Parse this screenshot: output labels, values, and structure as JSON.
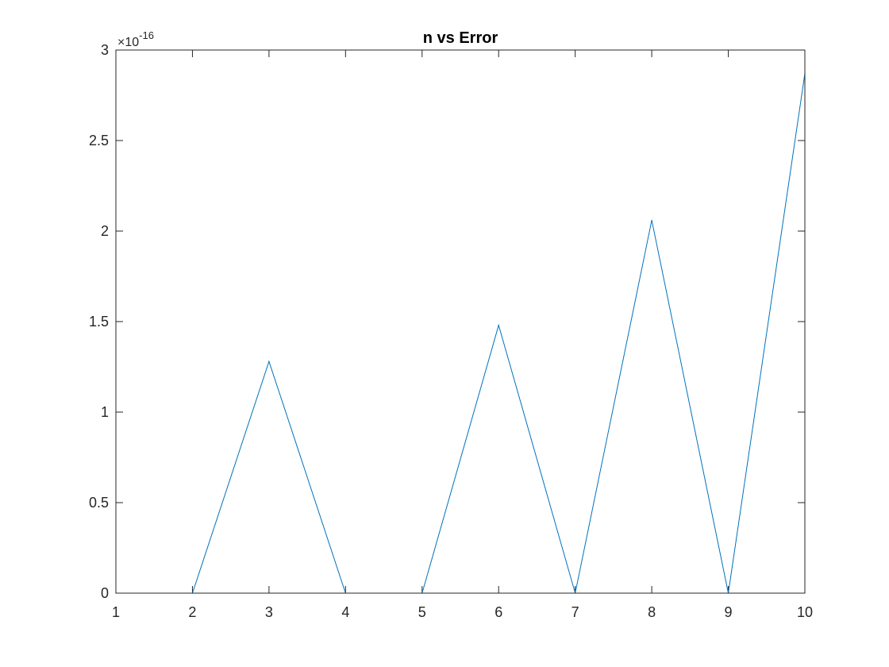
{
  "chart_data": {
    "type": "line",
    "title": "n vs Error",
    "xlabel": "",
    "ylabel": "",
    "xlim": [
      1,
      10
    ],
    "ylim": [
      0,
      3
    ],
    "y_multiplier": {
      "prefix": "×10",
      "exponent": "-16"
    },
    "x_ticks": [
      1,
      2,
      3,
      4,
      5,
      6,
      7,
      8,
      9,
      10
    ],
    "x_tick_labels": [
      "1",
      "2",
      "3",
      "4",
      "5",
      "6",
      "7",
      "8",
      "9",
      "10"
    ],
    "y_ticks": [
      0,
      0.5,
      1,
      1.5,
      2,
      2.5,
      3
    ],
    "y_tick_labels": [
      "0",
      "0.5",
      "1",
      "1.5",
      "2",
      "2.5",
      "3"
    ],
    "grid": false,
    "series": [
      {
        "color": "#0072bd",
        "x": [
          1,
          2,
          3,
          4,
          5,
          6,
          7,
          8,
          9,
          10
        ],
        "y": [
          0,
          0,
          1.28,
          0,
          0,
          1.48,
          0,
          2.06,
          0,
          2.87
        ]
      }
    ]
  }
}
